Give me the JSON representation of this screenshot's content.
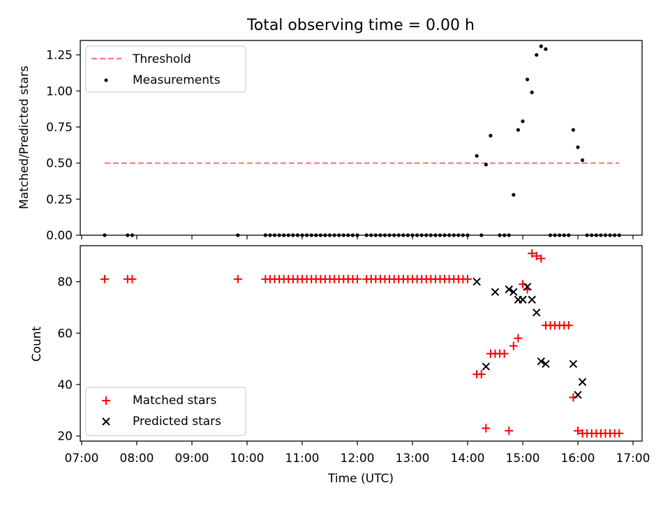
{
  "chart_data": [
    {
      "type": "scatter",
      "title": "Total observing time = 0.00 h",
      "ylabel": "Matched/Predicted stars",
      "xlabel": "",
      "ylim": [
        0,
        1.35
      ],
      "y_ticks": [
        "0.00",
        "0.25",
        "0.50",
        "0.75",
        "1.00",
        "1.25"
      ],
      "y_tick_values": [
        0,
        0.25,
        0.5,
        0.75,
        1.0,
        1.25
      ],
      "grid": false,
      "legend_position": "top-left",
      "series": [
        {
          "name": "Threshold",
          "kind": "dashed-line",
          "color": "#ff7777",
          "x": [
            "07:25",
            "16:45"
          ],
          "y": [
            0.5,
            0.5
          ]
        },
        {
          "name": "Measurements",
          "kind": "points",
          "color": "#000000",
          "x": [
            "07:25",
            "07:50",
            "07:55",
            "09:50",
            "10:20",
            "10:25",
            "10:30",
            "10:35",
            "10:40",
            "10:45",
            "10:50",
            "10:55",
            "11:00",
            "11:05",
            "11:10",
            "11:15",
            "11:20",
            "11:25",
            "11:30",
            "11:35",
            "11:40",
            "11:45",
            "11:50",
            "11:55",
            "12:00",
            "12:10",
            "12:15",
            "12:20",
            "12:25",
            "12:30",
            "12:35",
            "12:40",
            "12:45",
            "12:50",
            "12:55",
            "13:00",
            "13:05",
            "13:10",
            "13:15",
            "13:20",
            "13:25",
            "13:30",
            "13:35",
            "13:40",
            "13:45",
            "13:50",
            "13:55",
            "14:00",
            "14:10",
            "14:15",
            "14:20",
            "14:25",
            "14:35",
            "14:40",
            "14:45",
            "14:50",
            "14:55",
            "15:00",
            "15:05",
            "15:10",
            "15:15",
            "15:20",
            "15:25",
            "15:30",
            "15:35",
            "15:40",
            "15:45",
            "15:50",
            "15:55",
            "16:00",
            "16:05",
            "16:10",
            "16:15",
            "16:20",
            "16:25",
            "16:30",
            "16:35",
            "16:40",
            "16:45"
          ],
          "y": [
            0,
            0,
            0,
            0,
            0,
            0,
            0,
            0,
            0,
            0,
            0,
            0,
            0,
            0,
            0,
            0,
            0,
            0,
            0,
            0,
            0,
            0,
            0,
            0,
            0,
            0,
            0,
            0,
            0,
            0,
            0,
            0,
            0,
            0,
            0,
            0,
            0,
            0,
            0,
            0,
            0,
            0,
            0,
            0,
            0,
            0,
            0,
            0,
            0.55,
            0,
            0.49,
            0.69,
            0,
            0,
            0,
            0.28,
            0.73,
            0.79,
            1.08,
            0.99,
            1.25,
            1.31,
            1.29,
            0,
            0,
            0,
            0,
            0,
            0.73,
            0.61,
            0.52,
            0,
            0,
            0,
            0,
            0,
            0,
            0,
            0
          ]
        }
      ]
    },
    {
      "type": "scatter",
      "title": "",
      "ylabel": "Count",
      "xlabel": "Time (UTC)",
      "ylim": [
        18,
        94
      ],
      "y_ticks": [
        "20",
        "40",
        "60",
        "80"
      ],
      "y_tick_values": [
        20,
        40,
        60,
        80
      ],
      "x_ticks": [
        "07:00",
        "08:00",
        "09:00",
        "10:00",
        "11:00",
        "12:00",
        "13:00",
        "14:00",
        "15:00",
        "16:00",
        "17:00"
      ],
      "grid": false,
      "legend_position": "bottom-left",
      "series": [
        {
          "name": "Matched stars",
          "kind": "plus",
          "color": "#ff0000",
          "x": [
            "07:25",
            "07:50",
            "07:55",
            "09:50",
            "10:20",
            "10:25",
            "10:30",
            "10:35",
            "10:40",
            "10:45",
            "10:50",
            "10:55",
            "11:00",
            "11:05",
            "11:10",
            "11:15",
            "11:20",
            "11:25",
            "11:30",
            "11:35",
            "11:40",
            "11:45",
            "11:50",
            "11:55",
            "12:00",
            "12:10",
            "12:15",
            "12:20",
            "12:25",
            "12:30",
            "12:35",
            "12:40",
            "12:45",
            "12:50",
            "12:55",
            "13:00",
            "13:05",
            "13:10",
            "13:15",
            "13:20",
            "13:25",
            "13:30",
            "13:35",
            "13:40",
            "13:45",
            "13:50",
            "13:55",
            "14:00",
            "14:10",
            "14:15",
            "14:20",
            "14:25",
            "14:30",
            "14:35",
            "14:40",
            "14:45",
            "14:50",
            "14:55",
            "15:00",
            "15:05",
            "15:10",
            "15:15",
            "15:20",
            "15:25",
            "15:30",
            "15:35",
            "15:40",
            "15:45",
            "15:50",
            "15:55",
            "16:00",
            "16:05",
            "16:10",
            "16:15",
            "16:20",
            "16:25",
            "16:30",
            "16:35",
            "16:40",
            "16:45"
          ],
          "y": [
            81,
            81,
            81,
            81,
            81,
            81,
            81,
            81,
            81,
            81,
            81,
            81,
            81,
            81,
            81,
            81,
            81,
            81,
            81,
            81,
            81,
            81,
            81,
            81,
            81,
            81,
            81,
            81,
            81,
            81,
            81,
            81,
            81,
            81,
            81,
            81,
            81,
            81,
            81,
            81,
            81,
            81,
            81,
            81,
            81,
            81,
            81,
            81,
            44,
            44,
            23,
            52,
            52,
            52,
            52,
            22,
            55,
            58,
            79,
            77,
            91,
            90,
            89,
            63,
            63,
            63,
            63,
            63,
            63,
            35,
            22,
            21,
            21,
            21,
            21,
            21,
            21,
            21,
            21,
            21
          ]
        },
        {
          "name": "Predicted stars",
          "kind": "x",
          "color": "#000000",
          "x": [
            "14:10",
            "14:20",
            "14:30",
            "14:45",
            "14:50",
            "14:55",
            "15:00",
            "15:05",
            "15:10",
            "15:15",
            "15:20",
            "15:25",
            "15:55",
            "16:00",
            "16:05"
          ],
          "y": [
            80,
            47,
            76,
            77,
            76,
            73,
            73,
            78,
            73,
            68,
            49,
            48,
            48,
            36,
            41
          ]
        }
      ]
    }
  ]
}
